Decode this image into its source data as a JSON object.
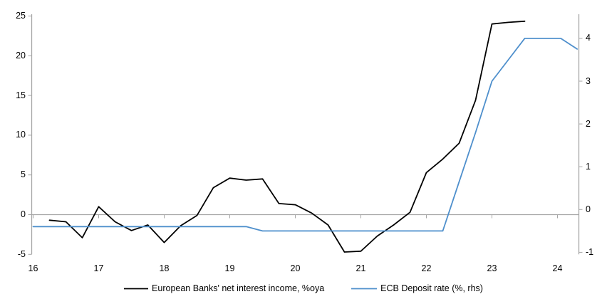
{
  "colors": {
    "axis": "#a6a6a6",
    "nii_line": "#000000",
    "deposit_line": "#4e8fcc"
  },
  "chart_data": {
    "type": "line",
    "title": "",
    "grid": "off",
    "legend_position": "bottom-center",
    "x_axis": {
      "labels": [
        "16",
        "17",
        "18",
        "19",
        "20",
        "21",
        "22",
        "23",
        "24"
      ],
      "range": [
        16,
        24.33
      ]
    },
    "left_axis": {
      "ticks": [
        "-5",
        "0",
        "5",
        "10",
        "15",
        "20",
        "25"
      ],
      "tick_values": [
        -5,
        0,
        5,
        10,
        15,
        20,
        25
      ],
      "range": [
        -5,
        25
      ]
    },
    "right_axis": {
      "ticks": [
        "-1",
        "0",
        "1",
        "2",
        "3",
        "4"
      ],
      "tick_values": [
        -1,
        0,
        1,
        2,
        3,
        4
      ],
      "range": [
        -1,
        4.6
      ]
    },
    "series": [
      {
        "name": "European Banks' net interest income, %oya",
        "axis": "left",
        "color_key": "nii_line",
        "points": [
          [
            16.25,
            -0.7
          ],
          [
            16.5,
            -0.9
          ],
          [
            16.75,
            -2.9
          ],
          [
            17.0,
            1.0
          ],
          [
            17.25,
            -0.9
          ],
          [
            17.5,
            -2.0
          ],
          [
            17.75,
            -1.3
          ],
          [
            18.0,
            -3.5
          ],
          [
            18.25,
            -1.4
          ],
          [
            18.5,
            -0.1
          ],
          [
            18.75,
            3.4
          ],
          [
            19.0,
            4.6
          ],
          [
            19.25,
            4.35
          ],
          [
            19.5,
            4.5
          ],
          [
            19.75,
            1.4
          ],
          [
            20.0,
            1.25
          ],
          [
            20.25,
            0.2
          ],
          [
            20.5,
            -1.3
          ],
          [
            20.75,
            -4.7
          ],
          [
            21.0,
            -4.6
          ],
          [
            21.25,
            -2.7
          ],
          [
            21.5,
            -1.3
          ],
          [
            21.75,
            0.3
          ],
          [
            22.0,
            5.3
          ],
          [
            22.25,
            7.0
          ],
          [
            22.5,
            9.0
          ],
          [
            22.75,
            14.4
          ],
          [
            23.0,
            24.0
          ],
          [
            23.25,
            24.2
          ],
          [
            23.5,
            24.35
          ]
        ]
      },
      {
        "name": "ECB Deposit rate (%, rhs)",
        "axis": "right",
        "color_key": "deposit_line",
        "points": [
          [
            16.0,
            -0.4
          ],
          [
            17.0,
            -0.4
          ],
          [
            18.0,
            -0.4
          ],
          [
            19.0,
            -0.4
          ],
          [
            19.25,
            -0.4
          ],
          [
            19.5,
            -0.5
          ],
          [
            20.0,
            -0.5
          ],
          [
            21.0,
            -0.5
          ],
          [
            22.0,
            -0.5
          ],
          [
            22.25,
            -0.5
          ],
          [
            22.5,
            0.65
          ],
          [
            22.75,
            1.8
          ],
          [
            23.0,
            3.0
          ],
          [
            23.25,
            3.5
          ],
          [
            23.5,
            4.0
          ],
          [
            23.75,
            4.0
          ],
          [
            24.0,
            4.0
          ],
          [
            24.05,
            4.0
          ],
          [
            24.3,
            3.75
          ]
        ]
      }
    ]
  }
}
